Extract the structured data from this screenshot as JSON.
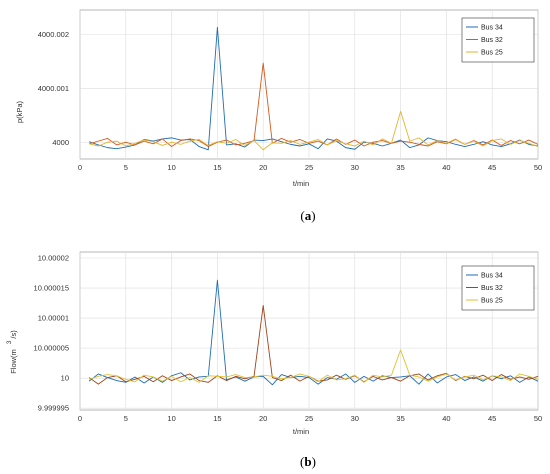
{
  "chart_data": [
    {
      "type": "line",
      "caption": "(a)",
      "ylabel": "p(kPa)",
      "xlabel": "t/min",
      "xlim": [
        0,
        50
      ],
      "ylim": [
        3999.9997,
        4000.00245
      ],
      "grid": true,
      "legend_position": "top-right",
      "xticks": [
        "0",
        "5",
        "10",
        "15",
        "20",
        "25",
        "30",
        "35",
        "40",
        "45",
        "50"
      ],
      "yticks": [
        "4000",
        "4000.001",
        "4000.002"
      ],
      "x": [
        1,
        2,
        3,
        4,
        5,
        6,
        7,
        8,
        9,
        10,
        11,
        12,
        13,
        14,
        15,
        16,
        17,
        18,
        19,
        20,
        21,
        22,
        23,
        24,
        25,
        26,
        27,
        28,
        29,
        30,
        31,
        32,
        33,
        34,
        35,
        36,
        37,
        38,
        39,
        40,
        41,
        42,
        43,
        44,
        45,
        46,
        47,
        48,
        49,
        50
      ],
      "series": [
        {
          "name": "Bus 34",
          "color": "#1f6db3",
          "values": [
            4000.00002,
            3999.99996,
            3999.99991,
            3999.99989,
            3999.99992,
            3999.99996,
            4000.00006,
            4000.00003,
            4000.00007,
            4000.00009,
            4000.00005,
            4000.00006,
            3999.99993,
            3999.99987,
            4000.00213,
            3999.99996,
            3999.99998,
            3999.99992,
            4000.00005,
            4000.00004,
            4000.00007,
            4000.00002,
            3999.99997,
            3999.99994,
            3999.99998,
            3999.99989,
            4000.00007,
            4000.00003,
            3999.99991,
            3999.99988,
            4000.00001,
            3999.99999,
            3999.99994,
            3999.99999,
            4000.00005,
            3999.99991,
            3999.99996,
            4000.00009,
            4000.00004,
            4000.00002,
            3999.99997,
            3999.99993,
            3999.99997,
            4000.00002,
            3999.99996,
            3999.99993,
            3999.99998,
            4000.00005,
            3999.99997,
            3999.99994
          ]
        },
        {
          "name": "Bus 32",
          "color": "#d35a1e",
          "values": [
            3999.99998,
            4000.00003,
            4000.00008,
            3999.99996,
            4000.00001,
            3999.99996,
            4000.00003,
            3999.99998,
            4000.00007,
            3999.99993,
            4000.00004,
            4000.00007,
            4000.00004,
            3999.99993,
            4000.00001,
            4000.00005,
            3999.99996,
            3999.99999,
            4000.00004,
            4000.00147,
            3999.99999,
            4000.00008,
            4000.00001,
            4000.00006,
            3999.99999,
            4000.00003,
            3999.99996,
            4000.00007,
            3999.99997,
            4000.00005,
            3999.99994,
            4000.00001,
            4000.00004,
            3999.99999,
            4000.00003,
            4000.00001,
            3999.99997,
            3999.99994,
            4000.00002,
            3999.99998,
            4000.00006,
            3999.99997,
            4000.00004,
            3999.99996,
            4000.00005,
            3999.99995,
            4000.00004,
            3999.99998,
            4000.00005,
            3999.99997
          ]
        },
        {
          "name": "Bus 25",
          "color": "#e7b52a",
          "values": [
            3999.99998,
            3999.99994,
            4000.00001,
            4000.00003,
            3999.99994,
            3999.99999,
            4000.00005,
            4000.00002,
            3999.99995,
            4000.00001,
            3999.99997,
            4000.00003,
            4000.00006,
            3999.99995,
            4000.00002,
            3999.99999,
            4000.00006,
            3999.99995,
            4000.00004,
            3999.99987,
            4000,
            3999.99999,
            4000.00004,
            3999.99997,
            4000.00001,
            4000.00006,
            3999.99996,
            4000.00004,
            3999.99998,
            3999.99994,
            4000.00003,
            3999.99996,
            4000.00007,
            3999.99999,
            4000.00058,
            4000.00003,
            4000.00009,
            3999.99996,
            4000.00004,
            3999.99999,
            4000.00007,
            3999.99997,
            4000.00003,
            3999.99994,
            4000.00004,
            4000.00007,
            3999.99997,
            4000.00004,
            3999.99999,
            3999.99993
          ]
        }
      ]
    },
    {
      "type": "line",
      "caption": "(b)",
      "ylabel": "Flow(m",
      "ylabel_sup": "3",
      "ylabel_suffix": "/s)",
      "xlabel": "t/min",
      "xlim": [
        0,
        50
      ],
      "ylim": [
        9.9999947,
        10.000021
      ],
      "grid": true,
      "legend_position": "top-right",
      "xticks": [
        "0",
        "5",
        "10",
        "15",
        "20",
        "25",
        "30",
        "35",
        "40",
        "45",
        "50"
      ],
      "yticks": [
        "9.999995",
        "10",
        "10.000005",
        "10.00001",
        "10.000015",
        "10.00002"
      ],
      "x": [
        1,
        2,
        3,
        4,
        5,
        6,
        7,
        8,
        9,
        10,
        11,
        12,
        13,
        14,
        15,
        16,
        17,
        18,
        19,
        20,
        21,
        22,
        23,
        24,
        25,
        26,
        27,
        28,
        29,
        30,
        31,
        32,
        33,
        34,
        35,
        36,
        37,
        38,
        39,
        40,
        41,
        42,
        43,
        44,
        45,
        46,
        47,
        48,
        49,
        50
      ],
      "series": [
        {
          "name": "Bus 34",
          "color": "#1f6db3",
          "values": [
            9.9999995,
            10.0000007,
            10.0000001,
            9.9999996,
            9.9999993,
            10.0000002,
            9.9999992,
            10.0000002,
            9.9999993,
            10.0000004,
            10.0000009,
            9.9999997,
            10.0000002,
            10.0000003,
            10.0000163,
            9.9999997,
            10.0000002,
            9.9999995,
            10.0000002,
            10.0000003,
            9.9999989,
            10.0000006,
            10.0000001,
            10.0000003,
            10.0000001,
            9.999999,
            10.0000001,
            9.9999998,
            10.0000007,
            9.9999993,
            10.0000003,
            9.9999995,
            10.0000004,
            10.0000001,
            10.0000002,
            10.0000004,
            9.999999,
            10.0000007,
            9.9999992,
            10.0000002,
            10.0000006,
            9.9999996,
            10.0000002,
            9.9999995,
            10.0000004,
            9.9999999,
            10.0000004,
            9.9999993,
            10.0000002,
            9.9999995
          ]
        },
        {
          "name": "Bus 32",
          "color": "#a0441a",
          "values": [
            10.0000001,
            9.999999,
            10.0000001,
            10.0000004,
            9.9999994,
            9.9999998,
            10.0000003,
            9.9999994,
            10.0000004,
            9.9999996,
            10.0000002,
            10.0000007,
            9.9999996,
            9.9999993,
            10.0000004,
            9.9999996,
            10.0000003,
            9.9999999,
            10.0000003,
            10.0000121,
            10.0000001,
            9.9999996,
            10.0000005,
            9.9999995,
            10.0000003,
            9.9999995,
            9.9999997,
            10.0000005,
            9.9999998,
            10.0000004,
            9.9999994,
            10.0000003,
            9.9999997,
            10.0000001,
            9.9999995,
            10.0000004,
            10.0000007,
            9.9999997,
            10.0000004,
            10.0000008,
            9.9999996,
            10.0000003,
            9.9999999,
            10.0000005,
            9.9999996,
            10.0000006,
            9.9999998,
            10.0000002,
            9.9999998,
            10.0000003
          ]
        },
        {
          "name": "Bus 25",
          "color": "#e0c330",
          "values": [
            9.9999998,
            10.0000003,
            10.0000006,
            10.0000004,
            9.9999998,
            9.9999994,
            10.0000005,
            10.0000002,
            9.9999995,
            10.0000003,
            9.9999994,
            10.0000001,
            9.9999993,
            10.0000004,
            10.0000003,
            10.0000002,
            10.0000006,
            10.0000001,
            10.0000002,
            10.0000005,
            10.0000003,
            9.9999999,
            10.0000001,
            10.0000007,
            10.0000003,
            9.9999994,
            10.0000005,
            9.9999997,
            9.9999999,
            10.0000005,
            9.9999993,
            10.0000005,
            10.0000002,
            10.0000005,
            10.0000047,
            10.0000005,
            10.0000002,
            9.9999995,
            10.0000002,
            10.0000007,
            9.9999997,
            10.0000002,
            10.0000005,
            9.9999997,
            10.0000004,
            10.0000002,
            9.9999996,
            10.0000007,
            10.0000003,
            9.9999998
          ]
        }
      ]
    }
  ]
}
